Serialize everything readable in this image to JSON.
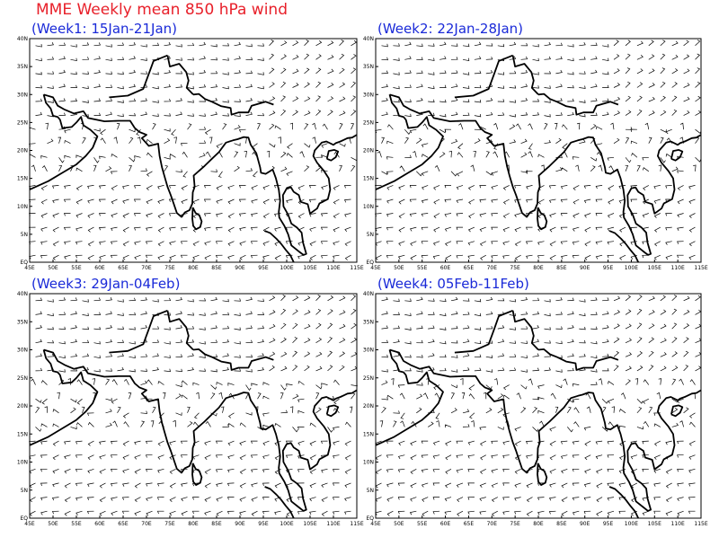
{
  "title": "MME Weekly mean 850 hPa wind",
  "panels": [
    {
      "title": "(Week1: 15Jan-21Jan)"
    },
    {
      "title": "(Week2: 22Jan-28Jan)"
    },
    {
      "title": "(Week3: 29Jan-04Feb)"
    },
    {
      "title": "(Week4: 05Feb-11Feb)"
    }
  ],
  "lat_labels": [
    "EQ",
    "5N",
    "10N",
    "15N",
    "20N",
    "25N",
    "30N",
    "35N",
    "40N"
  ],
  "lon_labels": [
    "45E",
    "50E",
    "55E",
    "60E",
    "65E",
    "70E",
    "75E",
    "80E",
    "85E",
    "90E",
    "95E",
    "100E",
    "105E",
    "110E",
    "115E"
  ]
}
